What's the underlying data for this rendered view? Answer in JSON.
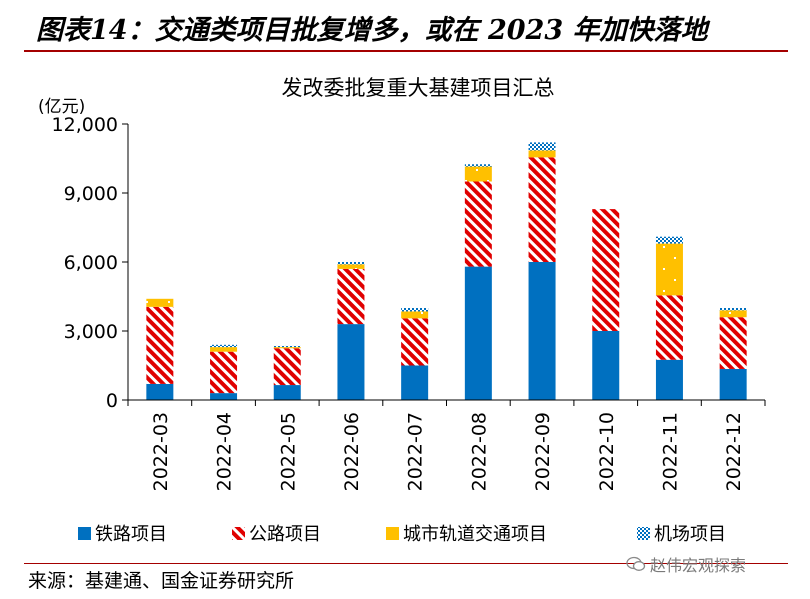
{
  "figure": {
    "title": "图表14：交通类项目批复增多，或在 2023 年加快落地",
    "source": "来源：基建通、国金证券研究所",
    "watermark": "赵伟宏观探索",
    "watermark_icon": "wechat-icon"
  },
  "chart_data": {
    "type": "bar",
    "stacked": true,
    "title": "发改委批复重大基建项目汇总",
    "ylabel": "(亿元)",
    "ylim": [
      0,
      12000
    ],
    "yticks": [
      0,
      3000,
      6000,
      9000,
      12000
    ],
    "ytick_labels": [
      "0",
      "3,000",
      "6,000",
      "9,000",
      "12,000"
    ],
    "categories": [
      "2022-03",
      "2022-04",
      "2022-05",
      "2022-06",
      "2022-07",
      "2022-08",
      "2022-09",
      "2022-10",
      "2022-11",
      "2022-12"
    ],
    "series": [
      {
        "name": "铁路项目",
        "color": "#0070c0",
        "pattern": "solid",
        "values": [
          700,
          300,
          650,
          3300,
          1500,
          5800,
          6000,
          3000,
          1750,
          1350
        ]
      },
      {
        "name": "公路项目",
        "color": "#e00000",
        "pattern": "diagonal-stripes",
        "values": [
          3350,
          1800,
          1600,
          2400,
          2050,
          3700,
          4550,
          5300,
          2800,
          2250
        ]
      },
      {
        "name": "城市轨道交通项目",
        "color": "#ffc000",
        "pattern": "dotted",
        "values": [
          350,
          200,
          50,
          200,
          300,
          650,
          300,
          0,
          2250,
          300
        ]
      },
      {
        "name": "机场项目",
        "color": "#0070c0",
        "pattern": "checker",
        "values": [
          0,
          100,
          50,
          100,
          150,
          100,
          350,
          0,
          300,
          100
        ]
      }
    ],
    "grid": false,
    "legend_position": "bottom"
  }
}
